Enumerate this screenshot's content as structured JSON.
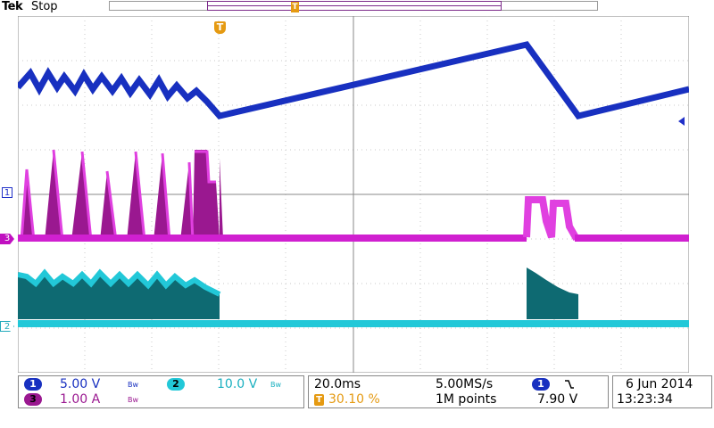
{
  "brand": "Tek",
  "status": "Stop",
  "trigger_marker": "T",
  "channels": {
    "ch1": {
      "label": "1",
      "scale": "5.00 V",
      "color": "#2030c8"
    },
    "ch2": {
      "label": "2",
      "scale": "10.0 V",
      "color": "#22b8c8"
    },
    "ch3": {
      "label": "3",
      "scale": "1.00 A",
      "color": "#c010c0"
    },
    "bw": "Bᴡ"
  },
  "timebase": {
    "scale": "20.0ms",
    "sample_rate": "5.00MS/s",
    "position": "30.10 %",
    "points": "1M points"
  },
  "trigger": {
    "source": "1",
    "slope_icon": "falling-edge-icon",
    "level": "7.90 V"
  },
  "date": "6 Jun 2014",
  "time": "13:23:34"
}
